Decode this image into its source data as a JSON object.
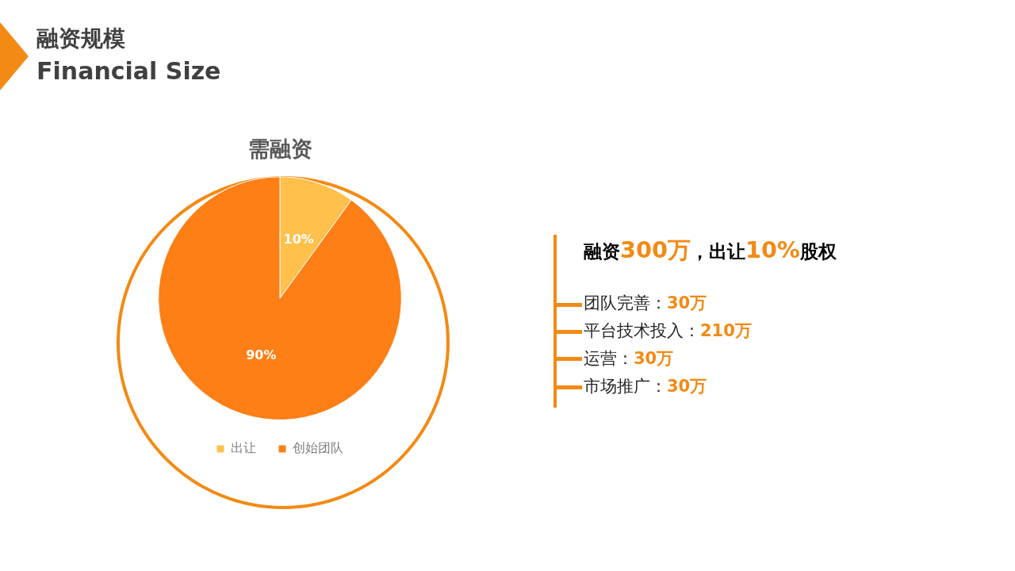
{
  "chart_data": {
    "type": "pie",
    "title": "需融资",
    "categories": [
      "出让",
      "创始团队"
    ],
    "values": [
      10,
      90
    ],
    "colors": [
      "#ffc04c",
      "#fd7f16"
    ],
    "value_labels": [
      "10%",
      "90%"
    ],
    "legend": "bottom",
    "annotations": [
      "融资规模",
      "Financial Size",
      "融资300万，出让10%股权",
      "团队完善：30万",
      "平台技术投入：210万",
      "运营：30万",
      "市场推广：30万"
    ]
  }
}
